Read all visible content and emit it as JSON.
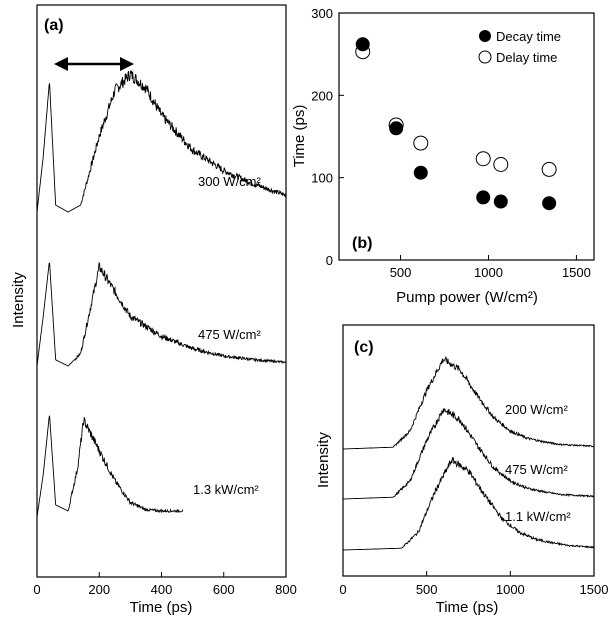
{
  "chart_data": [
    {
      "panel": "(a)",
      "type": "line",
      "xlabel": "Time (ps)",
      "ylabel": "Intensity",
      "xlim": [
        0,
        800
      ],
      "xticks": [
        "0",
        "200",
        "400",
        "600",
        "800"
      ],
      "series": [
        {
          "name": "300 W/cm²",
          "offset": 2,
          "peak1": 40,
          "peak2": 300,
          "rise_start": 140,
          "x_end": 800,
          "x": [
            0,
            20,
            40,
            60,
            100,
            140,
            200,
            250,
            300,
            350,
            400,
            500,
            600,
            700,
            800
          ],
          "y": [
            0.0,
            0.4,
            0.95,
            0.05,
            0.0,
            0.05,
            0.55,
            0.88,
            1.0,
            0.9,
            0.7,
            0.45,
            0.3,
            0.2,
            0.12
          ]
        },
        {
          "name": "475 W/cm²",
          "offset": 1,
          "peak1": 40,
          "peak2": 200,
          "rise_start": 120,
          "x_end": 800,
          "x": [
            0,
            20,
            40,
            60,
            100,
            140,
            200,
            250,
            300,
            400,
            500,
            600,
            700,
            800
          ],
          "y": [
            0.0,
            0.4,
            0.85,
            0.05,
            0.0,
            0.1,
            0.8,
            0.6,
            0.4,
            0.24,
            0.14,
            0.08,
            0.05,
            0.03
          ]
        },
        {
          "name": "1.3 kW/cm²",
          "offset": 0,
          "peak1": 40,
          "peak2": 150,
          "rise_start": 100,
          "x_end": 470,
          "x": [
            0,
            20,
            40,
            60,
            100,
            130,
            150,
            200,
            250,
            300,
            350,
            400,
            470
          ],
          "y": [
            0.0,
            0.35,
            0.85,
            0.1,
            0.05,
            0.4,
            0.8,
            0.55,
            0.3,
            0.12,
            0.06,
            0.05,
            0.05
          ]
        }
      ],
      "labels": [
        "300 W/cm²",
        "475 W/cm²",
        "1.3 kW/cm²"
      ]
    },
    {
      "panel": "(b)",
      "type": "scatter",
      "xlabel": "Pump power (W/cm²)",
      "ylabel": "Time (ps)",
      "xlim": [
        150,
        1600
      ],
      "ylim": [
        0,
        300
      ],
      "xticks": [
        "500",
        "1000",
        "1500"
      ],
      "yticks": [
        "0",
        "100",
        "200",
        "300"
      ],
      "legend_position": "top-right",
      "series": [
        {
          "name": "Decay time",
          "marker": "filled-circle",
          "x": [
            285,
            475,
            615,
            970,
            1070,
            1345
          ],
          "y": [
            262,
            160,
            106,
            76,
            71,
            69
          ]
        },
        {
          "name": "Delay time",
          "marker": "open-circle",
          "x": [
            285,
            475,
            615,
            970,
            1070,
            1345
          ],
          "y": [
            253,
            164,
            142,
            123,
            116,
            110
          ]
        }
      ]
    },
    {
      "panel": "(c)",
      "type": "line",
      "xlabel": "Time (ps)",
      "ylabel": "Intensity",
      "xlim": [
        0,
        1500
      ],
      "xticks": [
        "0",
        "500",
        "1000",
        "1500"
      ],
      "series": [
        {
          "name": "200 W/cm²",
          "offset": 2,
          "x": [
            0,
            300,
            400,
            500,
            600,
            700,
            800,
            900,
            1000,
            1100,
            1200,
            1300,
            1500
          ],
          "y": [
            0,
            0.02,
            0.2,
            0.65,
            1.0,
            0.88,
            0.6,
            0.35,
            0.2,
            0.12,
            0.08,
            0.05,
            0.03
          ]
        },
        {
          "name": "475 W/cm²",
          "offset": 1,
          "x": [
            0,
            300,
            400,
            500,
            600,
            700,
            800,
            900,
            1000,
            1100,
            1200,
            1300,
            1500
          ],
          "y": [
            0,
            0.02,
            0.2,
            0.65,
            1.0,
            0.88,
            0.6,
            0.35,
            0.2,
            0.12,
            0.08,
            0.05,
            0.03
          ]
        },
        {
          "name": "1.1 kW/cm²",
          "offset": 0,
          "x": [
            0,
            350,
            450,
            550,
            650,
            750,
            850,
            950,
            1050,
            1150,
            1250,
            1350,
            1500
          ],
          "y": [
            0,
            0.02,
            0.2,
            0.65,
            1.0,
            0.88,
            0.6,
            0.35,
            0.2,
            0.12,
            0.08,
            0.05,
            0.03
          ]
        }
      ],
      "labels": [
        "200 W/cm²",
        "475 W/cm²",
        "1.1 kW/cm²"
      ]
    }
  ]
}
